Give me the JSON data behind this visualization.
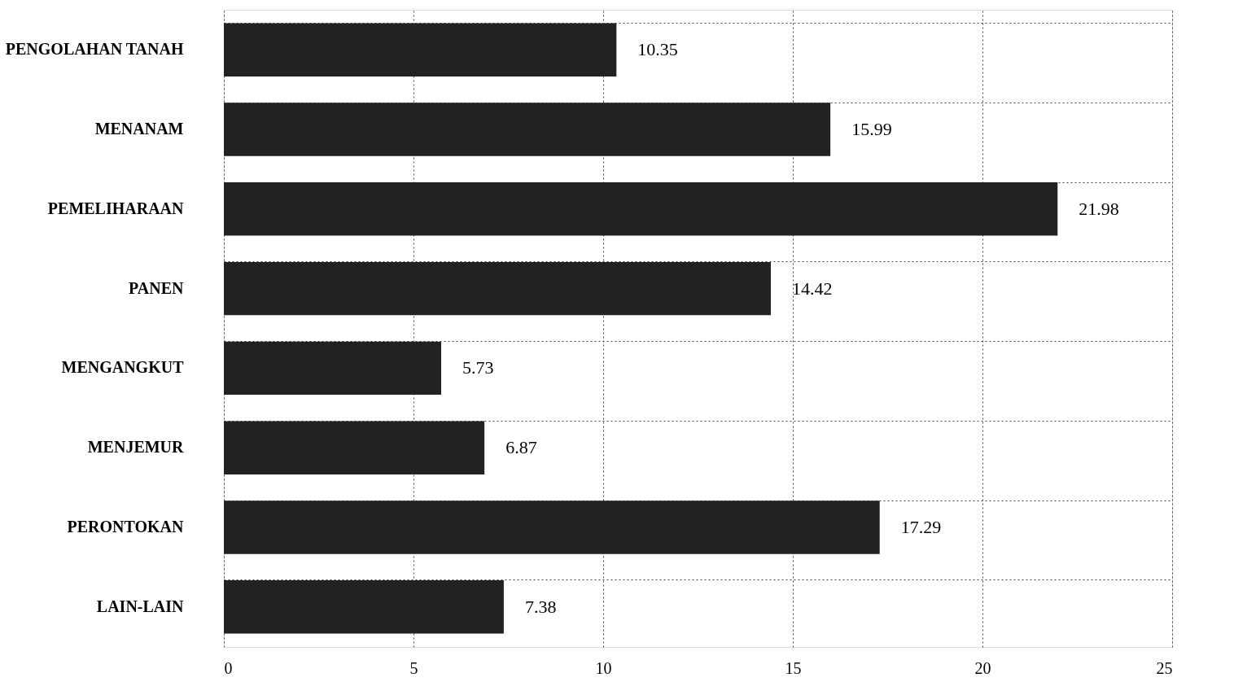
{
  "chart_data": {
    "type": "bar",
    "orientation": "horizontal",
    "categories": [
      "PENGOLAHAN TANAH",
      "MENANAM",
      "PEMELIHARAAN",
      "PANEN",
      "MENGANGKUT",
      "MENJEMUR",
      "PERONTOKAN",
      "LAIN-LAIN"
    ],
    "values": [
      10.35,
      15.99,
      21.98,
      14.42,
      5.73,
      6.87,
      17.29,
      7.38
    ],
    "color": "#222222",
    "xlim": [
      0,
      25
    ],
    "xticks": [
      0,
      5,
      10,
      15,
      20,
      25
    ],
    "grid": true,
    "data_labels": true
  }
}
